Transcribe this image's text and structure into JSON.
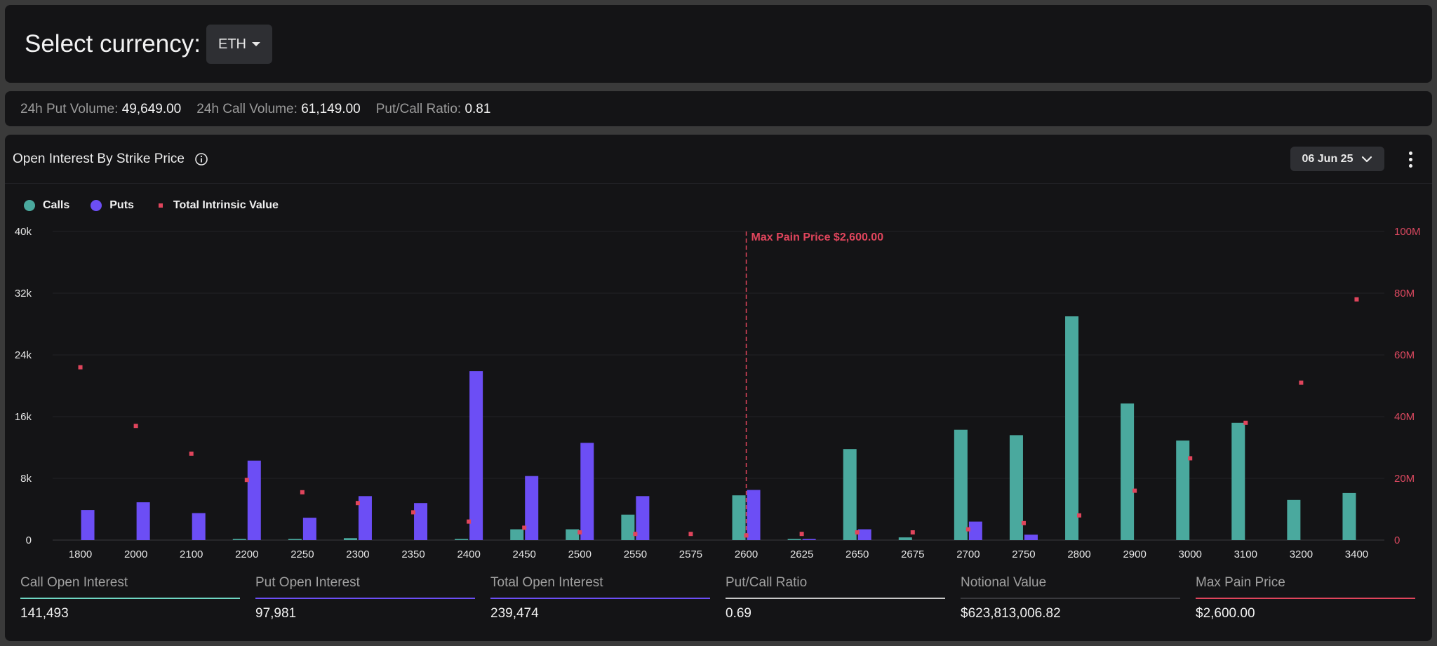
{
  "currency": {
    "label": "Select currency:",
    "selected": "ETH"
  },
  "stats": [
    {
      "key": "24h Put Volume:",
      "value": "49,649.00"
    },
    {
      "key": "24h Call Volume:",
      "value": "61,149.00"
    },
    {
      "key": "Put/Call Ratio:",
      "value": "0.81"
    }
  ],
  "chart_panel": {
    "title": "Open Interest By Strike Price",
    "date": "06 Jun 25"
  },
  "legend": [
    {
      "label": "Calls",
      "color": "#4aa99e"
    },
    {
      "label": "Puts",
      "color": "#6c4ef5"
    },
    {
      "label": "Total Intrinsic Value",
      "color": "#e0455c"
    }
  ],
  "chart_data": {
    "type": "bar",
    "categories": [
      "1800",
      "2000",
      "2100",
      "2200",
      "2250",
      "2300",
      "2350",
      "2400",
      "2450",
      "2500",
      "2550",
      "2575",
      "2600",
      "2625",
      "2650",
      "2675",
      "2700",
      "2750",
      "2800",
      "2900",
      "3000",
      "3100",
      "3200",
      "3400"
    ],
    "series": [
      {
        "name": "Calls",
        "color": "#4aa99e",
        "axis": "left",
        "values": [
          0,
          0,
          0,
          150,
          150,
          250,
          0,
          150,
          1400,
          1400,
          3300,
          0,
          5800,
          150,
          11800,
          350,
          14300,
          13600,
          29000,
          17700,
          12900,
          15200,
          5200,
          6100
        ]
      },
      {
        "name": "Puts",
        "color": "#6c4ef5",
        "axis": "left",
        "values": [
          3900,
          4900,
          3500,
          10300,
          2900,
          5700,
          4800,
          21900,
          8300,
          12600,
          5700,
          0,
          6500,
          150,
          1400,
          0,
          2400,
          700,
          0,
          0,
          0,
          0,
          0,
          0
        ]
      },
      {
        "name": "Total Intrinsic Value",
        "color": "#e0455c",
        "axis": "right",
        "kind": "scatter",
        "values": [
          56000000,
          37000000,
          28000000,
          19500000,
          15500000,
          12000000,
          9000000,
          6000000,
          4000000,
          2500000,
          2000000,
          2000000,
          1500000,
          2000000,
          2500000,
          2500000,
          3500000,
          5500000,
          8000000,
          16000000,
          26500000,
          38000000,
          51000000,
          78000000
        ]
      }
    ],
    "y_left": {
      "ylim": [
        0,
        40000
      ],
      "ticks": [
        "0",
        "8k",
        "16k",
        "24k",
        "32k",
        "40k"
      ],
      "tick_values": [
        0,
        8000,
        16000,
        24000,
        32000,
        40000
      ]
    },
    "y_right": {
      "ylim": [
        0,
        100000000
      ],
      "ticks": [
        "0",
        "20M",
        "40M",
        "60M",
        "80M",
        "100M"
      ],
      "tick_values": [
        0,
        20000000,
        40000000,
        60000000,
        80000000,
        100000000
      ]
    },
    "annotation": {
      "category": "2600",
      "label": "Max Pain Price $2,600.00",
      "color": "#e0455c"
    },
    "grid": true,
    "legend_position": "top-left"
  },
  "summary": [
    {
      "label": "Call Open Interest",
      "value": "141,493",
      "color": "#6fd6c3"
    },
    {
      "label": "Put Open Interest",
      "value": "97,981",
      "color": "#6c4ef5"
    },
    {
      "label": "Total Open Interest",
      "value": "239,474",
      "color": "#6c4ef5"
    },
    {
      "label": "Put/Call Ratio",
      "value": "0.69",
      "color": "#c8c8c8"
    },
    {
      "label": "Notional Value",
      "value": "$623,813,006.82",
      "color": "#3a3a3e"
    },
    {
      "label": "Max Pain Price",
      "value": "$2,600.00",
      "color": "#e0455c"
    }
  ]
}
